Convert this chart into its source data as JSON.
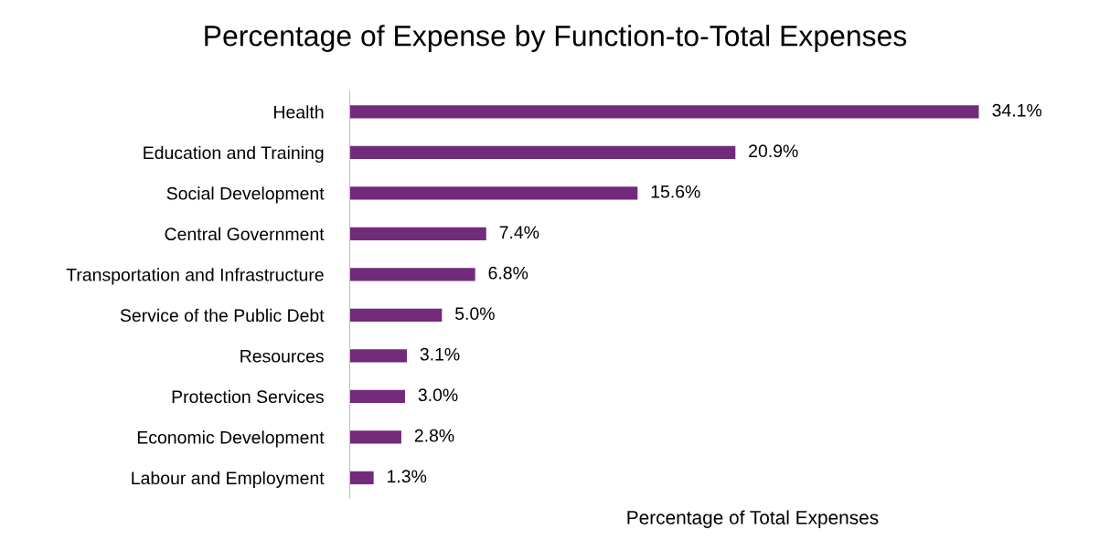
{
  "chart_data": {
    "type": "bar",
    "orientation": "horizontal",
    "title": "Percentage of Expense by Function-to-Total Expenses",
    "xlabel": "Percentage of Total Expenses",
    "categories": [
      "Health",
      "Education and Training",
      "Social Development",
      "Central Government",
      "Transportation and Infrastructure",
      "Service of the Public Debt",
      "Resources",
      "Protection Services",
      "Economic Development",
      "Labour and Employment"
    ],
    "values": [
      34.1,
      20.9,
      15.6,
      7.4,
      6.8,
      5.0,
      3.1,
      3.0,
      2.8,
      1.3
    ],
    "value_labels": [
      "34.1%",
      "20.9%",
      "15.6%",
      "7.4%",
      "6.8%",
      "5.0%",
      "3.1%",
      "3.0%",
      "2.8%",
      "1.3%"
    ],
    "color": "#722b7a",
    "grid": false,
    "legend": false
  }
}
